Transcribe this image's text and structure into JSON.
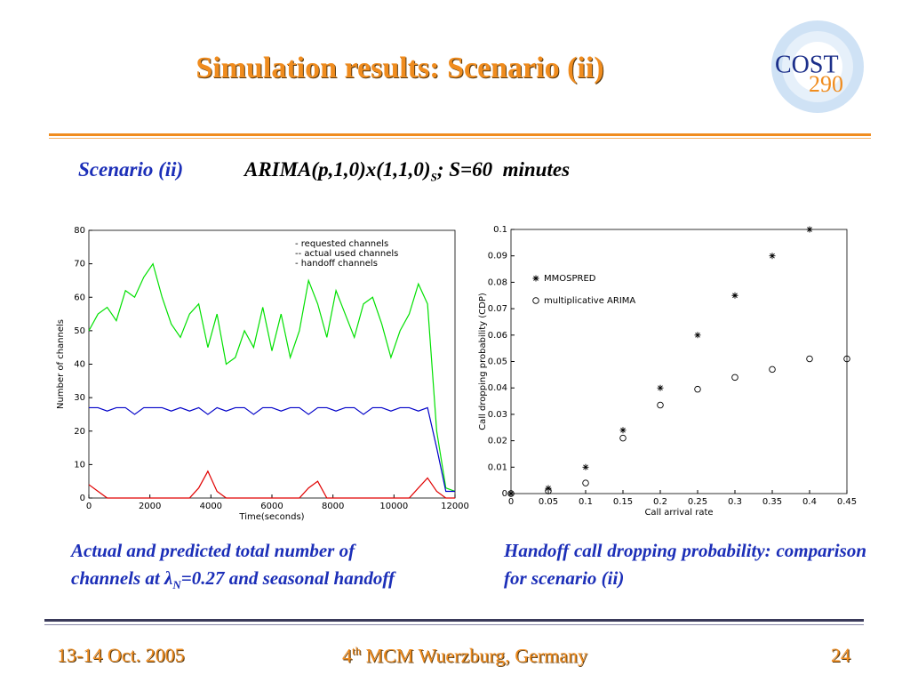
{
  "header": {
    "title": "Simulation results: Scenario (ii)",
    "logo_word": "COST",
    "logo_number": "290"
  },
  "subtitle": {
    "label": "Scenario (ii)",
    "model": "ARIMA(p,1,0)x(1,1,0)",
    "model_subscript": "S",
    "model_rest": "; S=60  minutes"
  },
  "captions": {
    "left_a": "Actual and predicted total number of",
    "left_b": "channels at λ",
    "left_sub": "N",
    "left_c": "=0.27 and seasonal handoff",
    "right": "Handoff call dropping probability: comparison for scenario (ii)"
  },
  "footer": {
    "date": "13-14 Oct. 2005",
    "event_num": "4",
    "event_sup": "th",
    "event": "MCM Wuerzburg, Germany",
    "page": "24"
  },
  "chart_data": [
    {
      "type": "line",
      "xlabel": "Time(seconds)",
      "ylabel": "Number of channels",
      "xlim": [
        0,
        12000
      ],
      "ylim": [
        0,
        80
      ],
      "xticks": [
        0,
        2000,
        4000,
        6000,
        8000,
        10000,
        12000
      ],
      "yticks": [
        0,
        10,
        20,
        30,
        40,
        50,
        60,
        70,
        80
      ],
      "x": [
        0,
        300,
        600,
        900,
        1200,
        1500,
        1800,
        2100,
        2400,
        2700,
        3000,
        3300,
        3600,
        3900,
        4200,
        4500,
        4800,
        5100,
        5400,
        5700,
        6000,
        6300,
        6600,
        6900,
        7200,
        7500,
        7800,
        8100,
        8400,
        8700,
        9000,
        9300,
        9600,
        9900,
        10200,
        10500,
        10800,
        11100,
        11400,
        11700,
        12000
      ],
      "series": [
        {
          "name": "- requested channels",
          "color": "#00e000",
          "values": [
            50,
            55,
            57,
            53,
            62,
            60,
            66,
            70,
            60,
            52,
            48,
            55,
            58,
            45,
            55,
            40,
            42,
            50,
            45,
            57,
            44,
            55,
            42,
            50,
            65,
            58,
            48,
            62,
            55,
            48,
            58,
            60,
            52,
            42,
            50,
            55,
            64,
            58,
            20,
            3,
            2
          ]
        },
        {
          "name": "-- actual used channels",
          "color": "#0000c8",
          "values": [
            27,
            27,
            26,
            27,
            27,
            25,
            27,
            27,
            27,
            26,
            27,
            26,
            27,
            25,
            27,
            26,
            27,
            27,
            25,
            27,
            27,
            26,
            27,
            27,
            25,
            27,
            27,
            26,
            27,
            27,
            25,
            27,
            27,
            26,
            27,
            27,
            26,
            27,
            15,
            2,
            2
          ]
        },
        {
          "name": "- handoff channels",
          "color": "#e00000",
          "values": [
            4,
            2,
            0,
            0,
            0,
            0,
            0,
            0,
            0,
            0,
            0,
            0,
            3,
            8,
            2,
            0,
            0,
            0,
            0,
            0,
            0,
            0,
            0,
            0,
            3,
            5,
            0,
            0,
            0,
            0,
            0,
            0,
            0,
            0,
            0,
            0,
            3,
            6,
            2,
            0,
            0
          ]
        }
      ]
    },
    {
      "type": "scatter",
      "xlabel": "Call arrival rate",
      "ylabel": "Call dropping probability (CDP)",
      "xlim": [
        0,
        0.45
      ],
      "ylim": [
        0,
        0.1
      ],
      "xticks": [
        0,
        0.05,
        0.1,
        0.15,
        0.2,
        0.25,
        0.3,
        0.35,
        0.4,
        0.45
      ],
      "yticks": [
        0,
        0.01,
        0.02,
        0.03,
        0.04,
        0.05,
        0.06,
        0.07,
        0.08,
        0.09,
        0.1
      ],
      "series": [
        {
          "name": "MMOSPRED",
          "marker": "star",
          "color": "#000000",
          "x": [
            0,
            0.05,
            0.1,
            0.15,
            0.2,
            0.25,
            0.3,
            0.35,
            0.4
          ],
          "values": [
            0,
            0.002,
            0.01,
            0.024,
            0.04,
            0.06,
            0.075,
            0.09,
            0.1
          ]
        },
        {
          "name": "multiplicative ARIMA",
          "marker": "circle",
          "color": "#000000",
          "x": [
            0,
            0.05,
            0.1,
            0.15,
            0.2,
            0.25,
            0.3,
            0.35,
            0.4,
            0.45
          ],
          "values": [
            0,
            0.001,
            0.004,
            0.021,
            0.0335,
            0.0395,
            0.044,
            0.047,
            0.051,
            0.051
          ]
        }
      ]
    }
  ]
}
